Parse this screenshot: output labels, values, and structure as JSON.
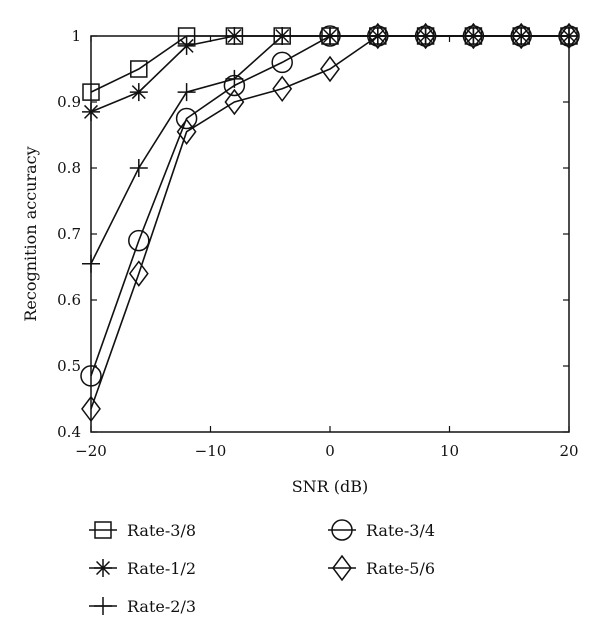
{
  "chart_data": {
    "type": "line",
    "title": "",
    "xlabel": "SNR (dB)",
    "ylabel": "Recognition accuracy",
    "xlim": [
      -20,
      20
    ],
    "ylim": [
      0.4,
      1
    ],
    "x_ticks": [
      -20,
      -10,
      0,
      10,
      20
    ],
    "x_tick_labels": [
      "−20",
      "−10",
      "0",
      "10",
      "20"
    ],
    "y_ticks": [
      0.4,
      0.5,
      0.6,
      0.7,
      0.8,
      0.9,
      1
    ],
    "y_tick_labels": [
      "0.4",
      "0.5",
      "0.6",
      "0.7",
      "0.8",
      "0.9",
      "1"
    ],
    "grid": false,
    "legend_position": "bottom",
    "x": [
      -20,
      -16,
      -12,
      -8,
      -4,
      0,
      4,
      8,
      12,
      16,
      20
    ],
    "series": [
      {
        "name": "Rate-3/8",
        "marker": "square",
        "values": [
          0.915,
          0.95,
          1,
          1,
          1,
          1,
          1,
          1,
          1,
          1,
          1
        ]
      },
      {
        "name": "Rate-1/2",
        "marker": "asterisk",
        "values": [
          0.885,
          0.915,
          0.985,
          1,
          1,
          1,
          1,
          1,
          1,
          1,
          1
        ]
      },
      {
        "name": "Rate-2/3",
        "marker": "plus",
        "values": [
          0.655,
          0.8,
          0.915,
          0.935,
          1,
          1,
          1,
          1,
          1,
          1,
          1
        ]
      },
      {
        "name": "Rate-3/4",
        "marker": "circle",
        "values": [
          0.485,
          0.69,
          0.875,
          0.925,
          0.96,
          1,
          1,
          1,
          1,
          1,
          1
        ]
      },
      {
        "name": "Rate-5/6",
        "marker": "diamond",
        "values": [
          0.435,
          0.64,
          0.855,
          0.9,
          0.92,
          0.95,
          1,
          1,
          1,
          1,
          1
        ]
      }
    ]
  }
}
